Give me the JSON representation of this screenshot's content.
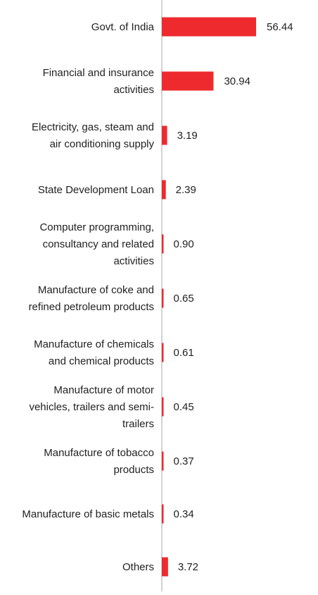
{
  "chart_data": {
    "type": "bar",
    "orientation": "horizontal",
    "categories": [
      "Govt. of India",
      "Financial and insurance activities",
      "Electricity, gas, steam and air conditioning supply",
      "State Development Loan",
      "Computer programming, consultancy and related activities",
      "Manufacture of coke and refined petroleum products",
      "Manufacture of chemicals and chemical products",
      "Manufacture of motor vehicles, trailers and semi-trailers",
      "Manufacture of tobacco products",
      "Manufacture of basic metals",
      "Others"
    ],
    "category_lines": [
      [
        "Govt. of India"
      ],
      [
        "Financial and insurance",
        "activities"
      ],
      [
        "Electricity, gas, steam and",
        "air conditioning supply"
      ],
      [
        "State Development Loan"
      ],
      [
        "Computer programming,",
        "consultancy and related",
        "activities"
      ],
      [
        "Manufacture of coke and",
        "refined petroleum products"
      ],
      [
        "Manufacture of chemicals",
        "and chemical products"
      ],
      [
        "Manufacture of motor",
        "vehicles, trailers and semi-",
        "trailers"
      ],
      [
        "Manufacture of tobacco",
        "products"
      ],
      [
        "Manufacture of basic metals"
      ],
      [
        "Others"
      ]
    ],
    "values": [
      56.44,
      30.94,
      3.19,
      2.39,
      0.9,
      0.65,
      0.61,
      0.45,
      0.37,
      0.34,
      3.72
    ],
    "value_labels": [
      "56.44",
      "30.94",
      "3.19",
      "2.39",
      "0.90",
      "0.65",
      "0.61",
      "0.45",
      "0.37",
      "0.34",
      "3.72"
    ],
    "title": "",
    "xlabel": "",
    "ylabel": "",
    "xlim": [
      0,
      60
    ],
    "grid": false,
    "legend": "none",
    "colors": {
      "bar": "#ee2a2e",
      "axis": "#b3b3b3",
      "text": "#222222"
    }
  }
}
